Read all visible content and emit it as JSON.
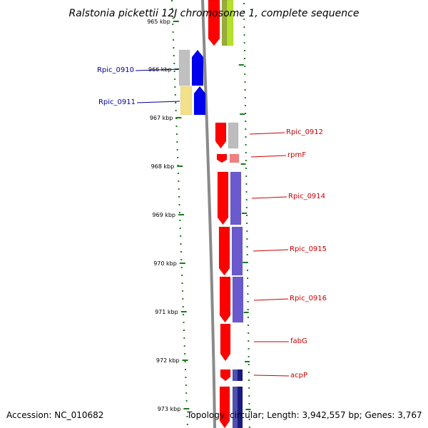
{
  "title": "Ralstonia pickettii 12J chromosome 1, complete sequence",
  "accession_label": "Accession: NC_010682",
  "topology_label": "Topology: circular; Length: 3,942,557 bp; Genes: 3,767",
  "colors": {
    "scale_tick": "#1a7a1a",
    "backbone": "#888888",
    "gene_strand": "#ff0000",
    "label_right": "#cc0000",
    "label_left": "#000099"
  },
  "scale_ticks": [
    {
      "label": "965 kbp"
    },
    {
      "label": "966 kbp"
    },
    {
      "label": "967 kbp"
    },
    {
      "label": "968 kbp"
    },
    {
      "label": "969 kbp"
    },
    {
      "label": "970 kbp"
    },
    {
      "label": "971 kbp"
    },
    {
      "label": "972 kbp"
    },
    {
      "label": "973 kbp"
    }
  ],
  "gene_labels": [
    {
      "name": "Rpic_0910",
      "side": "left"
    },
    {
      "name": "Rpic_0911",
      "side": "left"
    },
    {
      "name": "Rpic_0912",
      "side": "right"
    },
    {
      "name": "rpmF",
      "side": "right"
    },
    {
      "name": "Rpic_0914",
      "side": "right"
    },
    {
      "name": "Rpic_0915",
      "side": "right"
    },
    {
      "name": "Rpic_0916",
      "side": "right"
    },
    {
      "name": "fabG",
      "side": "right"
    },
    {
      "name": "acpP",
      "side": "right"
    }
  ]
}
